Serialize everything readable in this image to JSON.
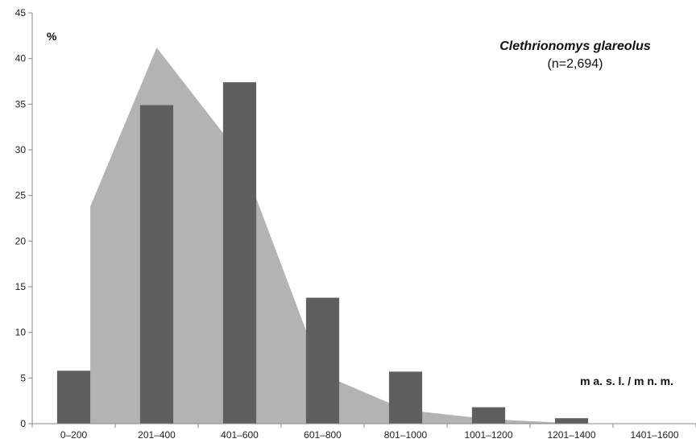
{
  "chart_data": {
    "type": "bar",
    "title": "Clethrionomys glareolus",
    "subtitle": "(n=2,694)",
    "ylabel": "%",
    "xlabel": "m a. s. l. / m n. m.",
    "ylim": [
      0,
      45
    ],
    "yticks": [
      "0",
      "5",
      "10",
      "15",
      "20",
      "25",
      "30",
      "35",
      "40",
      "45"
    ],
    "categories": [
      "0–200",
      "201–400",
      "401–600",
      "601–800",
      "801–1000",
      "1001–1200",
      "1201–1400",
      "1401–1600"
    ],
    "series": [
      {
        "type": "bar",
        "values": [
          5.8,
          34.9,
          37.4,
          13.8,
          5.7,
          1.8,
          0.6,
          0
        ]
      },
      {
        "type": "area",
        "values": [
          23.8,
          41.2,
          29.5,
          5.4,
          1.5,
          0.5,
          0.05,
          0
        ]
      }
    ],
    "grid": false,
    "colors": {
      "bar": "#5f5f5f",
      "area": "#b3b3b3",
      "axis": "#888888"
    }
  }
}
